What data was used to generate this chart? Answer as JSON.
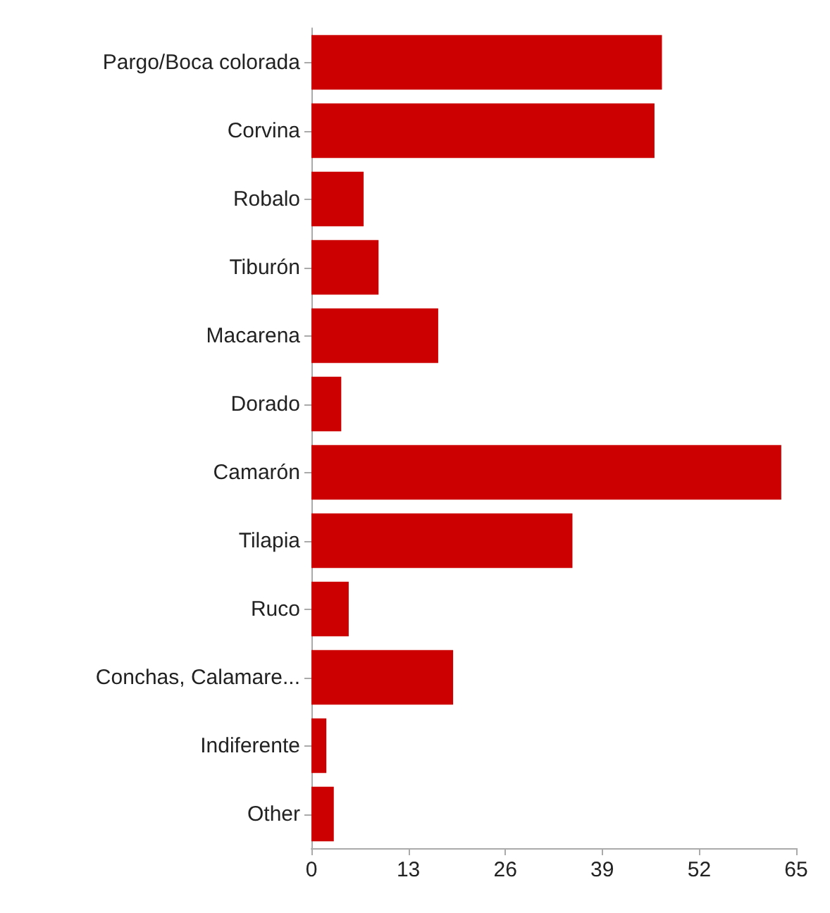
{
  "chart_data": {
    "type": "bar",
    "orientation": "horizontal",
    "categories": [
      "Pargo/Boca colorada",
      "Corvina",
      "Robalo",
      "Tiburón",
      "Macarena",
      "Dorado",
      "Camarón",
      "Tilapia",
      "Ruco",
      "Conchas, Calamare...",
      "Indiferente",
      "Other"
    ],
    "values": [
      47,
      46,
      7,
      9,
      17,
      4,
      63,
      35,
      5,
      19,
      2,
      3
    ],
    "color": "#cc0000",
    "xlim": [
      0,
      65
    ],
    "xticks": [
      0,
      13,
      26,
      39,
      52,
      65
    ],
    "grid": false
  }
}
